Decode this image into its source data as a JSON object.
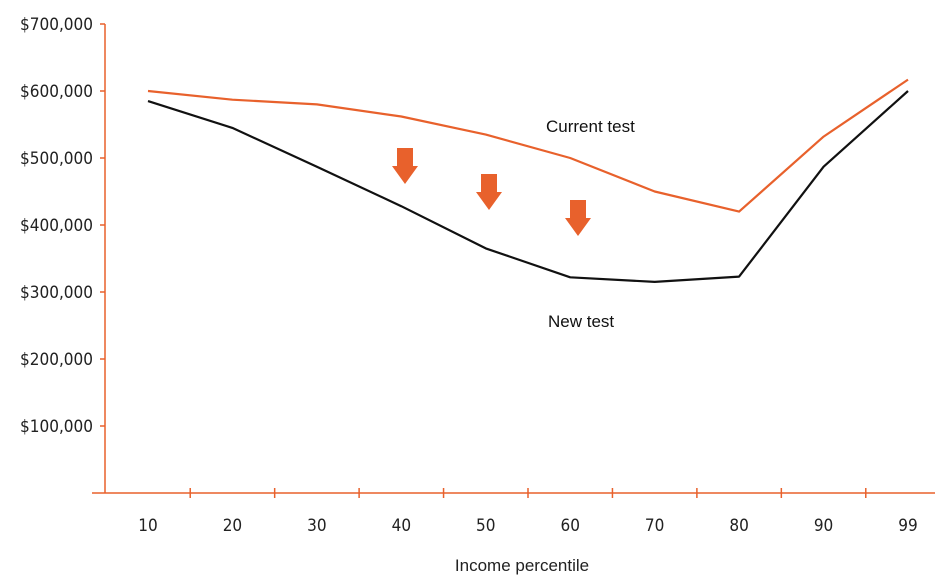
{
  "chart_data": {
    "type": "line",
    "title": "",
    "xlabel": "Income percentile",
    "ylabel": "",
    "categories": [
      "10",
      "20",
      "30",
      "40",
      "50",
      "60",
      "70",
      "80",
      "90",
      "99"
    ],
    "ylim": [
      0,
      700000
    ],
    "yticks": [
      100000,
      200000,
      300000,
      400000,
      500000,
      600000,
      700000
    ],
    "ytick_labels": [
      "$100,000",
      "$200,000",
      "$300,000",
      "$400,000",
      "$500,000",
      "$600,000",
      "$700,000"
    ],
    "grid": false,
    "series": [
      {
        "name": "Current test",
        "color": "#e8612c",
        "values": [
          600000,
          587000,
          580000,
          562000,
          535000,
          500000,
          450000,
          420000,
          532000,
          617000
        ]
      },
      {
        "name": "New test",
        "color": "#111111",
        "values": [
          585000,
          545000,
          487000,
          428000,
          365000,
          322000,
          315000,
          323000,
          487000,
          600000
        ]
      }
    ],
    "annotations": {
      "arrow_icon": "down-arrow-icon",
      "arrow_color": "#e8612c",
      "arrow_count": 3
    },
    "axis_color": "#e8612c"
  }
}
